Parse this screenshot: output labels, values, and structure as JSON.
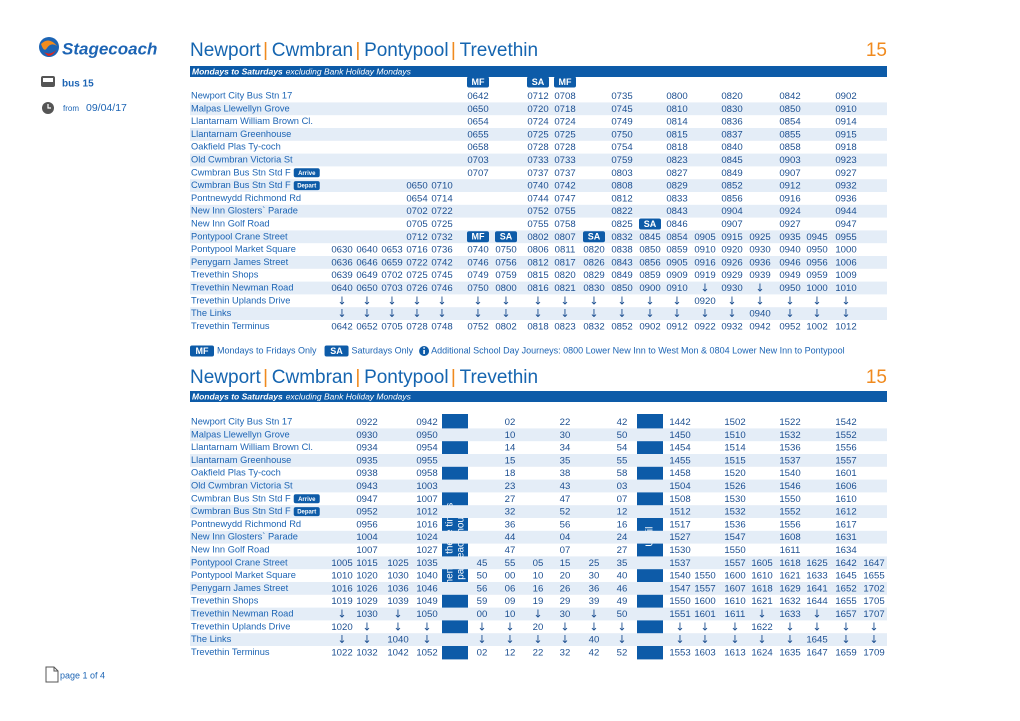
{
  "logo": "Stagecoach",
  "sidebar": {
    "service": "bus 15",
    "from_label": "from",
    "from_date": "09/04/17"
  },
  "timetables": [
    {
      "title": [
        "Newport",
        "Cwmbran",
        "Pontypool",
        "Trevethin"
      ],
      "route": "15",
      "days": "Mondays to Saturdays",
      "days_note": "excluding Bank Holiday Mondays",
      "header": [
        null,
        null,
        null,
        null,
        null,
        "MF",
        null,
        "SA",
        "MF",
        null,
        null,
        null,
        null,
        null,
        null,
        null,
        null,
        null,
        null
      ],
      "rows": [
        {
          "stop": "Newport City Bus Stn 17",
          "times": [
            null,
            null,
            null,
            null,
            null,
            "0642",
            null,
            "0712",
            "0708",
            null,
            "0735",
            null,
            "0800",
            null,
            "0820",
            null,
            "0842",
            null,
            "0902"
          ]
        },
        {
          "stop": "Malpas Llewellyn Grove",
          "times": [
            null,
            null,
            null,
            null,
            null,
            "0650",
            null,
            "0720",
            "0718",
            null,
            "0745",
            null,
            "0810",
            null,
            "0830",
            null,
            "0850",
            null,
            "0910"
          ]
        },
        {
          "stop": "Llantarnam William Brown Cl.",
          "times": [
            null,
            null,
            null,
            null,
            null,
            "0654",
            null,
            "0724",
            "0724",
            null,
            "0749",
            null,
            "0814",
            null,
            "0836",
            null,
            "0854",
            null,
            "0914"
          ]
        },
        {
          "stop": "Llantarnam Greenhouse",
          "times": [
            null,
            null,
            null,
            null,
            null,
            "0655",
            null,
            "0725",
            "0725",
            null,
            "0750",
            null,
            "0815",
            null,
            "0837",
            null,
            "0855",
            null,
            "0915"
          ]
        },
        {
          "stop": "Oakfield Plas Ty-coch",
          "times": [
            null,
            null,
            null,
            null,
            null,
            "0658",
            null,
            "0728",
            "0728",
            null,
            "0754",
            null,
            "0818",
            null,
            "0840",
            null,
            "0858",
            null,
            "0918"
          ]
        },
        {
          "stop": "Old Cwmbran Victoria St",
          "times": [
            null,
            null,
            null,
            null,
            null,
            "0703",
            null,
            "0733",
            "0733",
            null,
            "0759",
            null,
            "0823",
            null,
            "0845",
            null,
            "0903",
            null,
            "0923"
          ]
        },
        {
          "stop": "Cwmbran Bus Stn Std F",
          "badge": "Arrive",
          "times": [
            null,
            null,
            null,
            null,
            null,
            "0707",
            null,
            "0737",
            "0737",
            null,
            "0803",
            null,
            "0827",
            null,
            "0849",
            null,
            "0907",
            null,
            "0927"
          ]
        },
        {
          "stop": "Cwmbran Bus Stn Std F",
          "badge": "Depart",
          "times": [
            null,
            null,
            null,
            "0650",
            "0710",
            null,
            null,
            "0740",
            "0742",
            null,
            "0808",
            null,
            "0829",
            null,
            "0852",
            null,
            "0912",
            null,
            "0932"
          ]
        },
        {
          "stop": "Pontnewydd Richmond Rd",
          "times": [
            null,
            null,
            null,
            "0654",
            "0714",
            null,
            null,
            "0744",
            "0747",
            null,
            "0812",
            null,
            "0833",
            null,
            "0856",
            null,
            "0916",
            null,
            "0936"
          ]
        },
        {
          "stop": "New Inn Glosters` Parade",
          "times": [
            null,
            null,
            null,
            "0702",
            "0722",
            null,
            null,
            "0752",
            "0755",
            null,
            "0822",
            null,
            "0843",
            null,
            "0904",
            null,
            "0924",
            null,
            "0944"
          ]
        },
        {
          "stop": "New Inn Golf Road",
          "times": [
            null,
            null,
            null,
            "0705",
            "0725",
            null,
            null,
            "0755",
            "0758",
            null,
            "0825",
            "SA",
            "0846",
            null,
            "0907",
            null,
            "0927",
            null,
            "0947"
          ]
        },
        {
          "stop": "Pontypool Crane Street",
          "times": [
            null,
            null,
            null,
            "0712",
            "0732",
            "MF",
            "SA",
            "0802",
            "0807",
            "SA",
            "0832",
            "0845",
            "0854",
            "0905",
            "0915",
            "0925",
            "0935",
            "0945",
            "0955"
          ]
        },
        {
          "stop": "Pontypool Market Square",
          "times": [
            "0630",
            "0640",
            "0653",
            "0716",
            "0736",
            "0740",
            "0750",
            "0806",
            "0811",
            "0820",
            "0838",
            "0850",
            "0859",
            "0910",
            "0920",
            "0930",
            "0940",
            "0950",
            "1000"
          ]
        },
        {
          "stop": "Penygarn James Street",
          "times": [
            "0636",
            "0646",
            "0659",
            "0722",
            "0742",
            "0746",
            "0756",
            "0812",
            "0817",
            "0826",
            "0843",
            "0856",
            "0905",
            "0916",
            "0926",
            "0936",
            "0946",
            "0956",
            "1006"
          ]
        },
        {
          "stop": "Trevethin Shops",
          "times": [
            "0639",
            "0649",
            "0702",
            "0725",
            "0745",
            "0749",
            "0759",
            "0815",
            "0820",
            "0829",
            "0849",
            "0859",
            "0909",
            "0919",
            "0929",
            "0939",
            "0949",
            "0959",
            "1009"
          ]
        },
        {
          "stop": "Trevethin Newman Road",
          "times": [
            "0640",
            "0650",
            "0703",
            "0726",
            "0746",
            "0750",
            "0800",
            "0816",
            "0821",
            "0830",
            "0850",
            "0900",
            "0910",
            "↓",
            "0930",
            "↓",
            "0950",
            "1000",
            "1010"
          ]
        },
        {
          "stop": "Trevethin Uplands Drive",
          "times": [
            "↓",
            "↓",
            "↓",
            "↓",
            "↓",
            "↓",
            "↓",
            "↓",
            "↓",
            "↓",
            "↓",
            "↓",
            "↓",
            "0920",
            "↓",
            "↓",
            "↓",
            "↓",
            "↓"
          ]
        },
        {
          "stop": "The Links",
          "times": [
            "↓",
            "↓",
            "↓",
            "↓",
            "↓",
            "↓",
            "↓",
            "↓",
            "↓",
            "↓",
            "↓",
            "↓",
            "↓",
            "↓",
            "↓",
            "0940",
            "↓",
            "↓",
            "↓"
          ]
        },
        {
          "stop": "Trevethin Terminus",
          "times": [
            "0642",
            "0652",
            "0705",
            "0728",
            "0748",
            "0752",
            "0802",
            "0818",
            "0823",
            "0832",
            "0852",
            "0902",
            "0912",
            "0922",
            "0932",
            "0942",
            "0952",
            "1002",
            "1012"
          ]
        }
      ]
    },
    {
      "title": [
        "Newport",
        "Cwmbran",
        "Pontypool",
        "Trevethin"
      ],
      "route": "15",
      "days": "Mondays to Saturdays",
      "days_note": "excluding Bank Holiday Mondays",
      "band_text": [
        "Then at these times",
        "past each hour"
      ],
      "until": "Until",
      "rows": [
        {
          "stop": "Newport City Bus Stn 17",
          "times": [
            null,
            "0922",
            null,
            "0942",
            null,
            "02",
            null,
            "22",
            null,
            "42",
            "1442",
            null,
            "1502",
            null,
            "1522",
            null,
            "1542",
            null
          ]
        },
        {
          "stop": "Malpas Llewellyn Grove",
          "times": [
            null,
            "0930",
            null,
            "0950",
            null,
            "10",
            null,
            "30",
            null,
            "50",
            "1450",
            null,
            "1510",
            null,
            "1532",
            null,
            "1552",
            null
          ]
        },
        {
          "stop": "Llantarnam William Brown Cl.",
          "times": [
            null,
            "0934",
            null,
            "0954",
            null,
            "14",
            null,
            "34",
            null,
            "54",
            "1454",
            null,
            "1514",
            null,
            "1536",
            null,
            "1556",
            null
          ]
        },
        {
          "stop": "Llantarnam Greenhouse",
          "times": [
            null,
            "0935",
            null,
            "0955",
            null,
            "15",
            null,
            "35",
            null,
            "55",
            "1455",
            null,
            "1515",
            null,
            "1537",
            null,
            "1557",
            null
          ]
        },
        {
          "stop": "Oakfield Plas Ty-coch",
          "times": [
            null,
            "0938",
            null,
            "0958",
            null,
            "18",
            null,
            "38",
            null,
            "58",
            "1458",
            null,
            "1520",
            null,
            "1540",
            null,
            "1601",
            null
          ]
        },
        {
          "stop": "Old Cwmbran Victoria St",
          "times": [
            null,
            "0943",
            null,
            "1003",
            null,
            "23",
            null,
            "43",
            null,
            "03",
            "1504",
            null,
            "1526",
            null,
            "1546",
            null,
            "1606",
            null
          ]
        },
        {
          "stop": "Cwmbran Bus Stn Std F",
          "badge": "Arrive",
          "times": [
            null,
            "0947",
            null,
            "1007",
            null,
            "27",
            null,
            "47",
            null,
            "07",
            "1508",
            null,
            "1530",
            null,
            "1550",
            null,
            "1610",
            null
          ]
        },
        {
          "stop": "Cwmbran Bus Stn Std F",
          "badge": "Depart",
          "times": [
            null,
            "0952",
            null,
            "1012",
            null,
            "32",
            null,
            "52",
            null,
            "12",
            "1512",
            null,
            "1532",
            null,
            "1552",
            null,
            "1612",
            null
          ]
        },
        {
          "stop": "Pontnewydd Richmond Rd",
          "times": [
            null,
            "0956",
            null,
            "1016",
            null,
            "36",
            null,
            "56",
            null,
            "16",
            "1517",
            null,
            "1536",
            null,
            "1556",
            null,
            "1617",
            null
          ]
        },
        {
          "stop": "New Inn Glosters` Parade",
          "times": [
            null,
            "1004",
            null,
            "1024",
            null,
            "44",
            null,
            "04",
            null,
            "24",
            "1527",
            null,
            "1547",
            null,
            "1608",
            null,
            "1631",
            null
          ]
        },
        {
          "stop": "New Inn Golf Road",
          "times": [
            null,
            "1007",
            null,
            "1027",
            null,
            "47",
            null,
            "07",
            null,
            "27",
            "1530",
            null,
            "1550",
            null,
            "1611",
            null,
            "1634",
            null
          ]
        },
        {
          "stop": "Pontypool Crane Street",
          "times": [
            "1005",
            "1015",
            "1025",
            "1035",
            "45",
            "55",
            "05",
            "15",
            "25",
            "35",
            "1537",
            null,
            "1557",
            "1605",
            "1618",
            "1625",
            "1642",
            "1647"
          ]
        },
        {
          "stop": "Pontypool Market Square",
          "times": [
            "1010",
            "1020",
            "1030",
            "1040",
            "50",
            "00",
            "10",
            "20",
            "30",
            "40",
            "1540",
            "1550",
            "1600",
            "1610",
            "1621",
            "1633",
            "1645",
            "1655"
          ]
        },
        {
          "stop": "Penygarn James Street",
          "times": [
            "1016",
            "1026",
            "1036",
            "1046",
            "56",
            "06",
            "16",
            "26",
            "36",
            "46",
            "1547",
            "1557",
            "1607",
            "1618",
            "1629",
            "1641",
            "1652",
            "1702"
          ]
        },
        {
          "stop": "Trevethin Shops",
          "times": [
            "1019",
            "1029",
            "1039",
            "1049",
            "59",
            "09",
            "19",
            "29",
            "39",
            "49",
            "1550",
            "1600",
            "1610",
            "1621",
            "1632",
            "1644",
            "1655",
            "1705"
          ]
        },
        {
          "stop": "Trevethin Newman Road",
          "times": [
            "↓",
            "1030",
            "↓",
            "1050",
            "00",
            "10",
            "↓",
            "30",
            "↓",
            "50",
            "1551",
            "1601",
            "1611",
            "↓",
            "1633",
            "↓",
            "1657",
            "1707"
          ]
        },
        {
          "stop": "Trevethin Uplands Drive",
          "times": [
            "1020",
            "↓",
            "↓",
            "↓",
            "↓",
            "↓",
            "20",
            "↓",
            "↓",
            "↓",
            "↓",
            "↓",
            "↓",
            "1622",
            "↓",
            "↓",
            "↓",
            "↓"
          ]
        },
        {
          "stop": "The Links",
          "times": [
            "↓",
            "↓",
            "1040",
            "↓",
            "↓",
            "↓",
            "↓",
            "↓",
            "40",
            "↓",
            "↓",
            "↓",
            "↓",
            "↓",
            "↓",
            "1645",
            "↓",
            "↓"
          ]
        },
        {
          "stop": "Trevethin Terminus",
          "times": [
            "1022",
            "1032",
            "1042",
            "1052",
            "02",
            "12",
            "22",
            "32",
            "42",
            "52",
            "1553",
            "1603",
            "1613",
            "1624",
            "1635",
            "1647",
            "1659",
            "1709"
          ]
        }
      ]
    }
  ],
  "key": {
    "mf": "MF",
    "mf_text": "Mondays to Fridays Only",
    "sa": "SA",
    "sa_text": "Saturdays Only",
    "note": "Additional School Day Journeys: 0800 Lower New Inn to West Mon & 0804 Lower New Inn to Pontypool"
  },
  "footer": "page 1 of 4"
}
